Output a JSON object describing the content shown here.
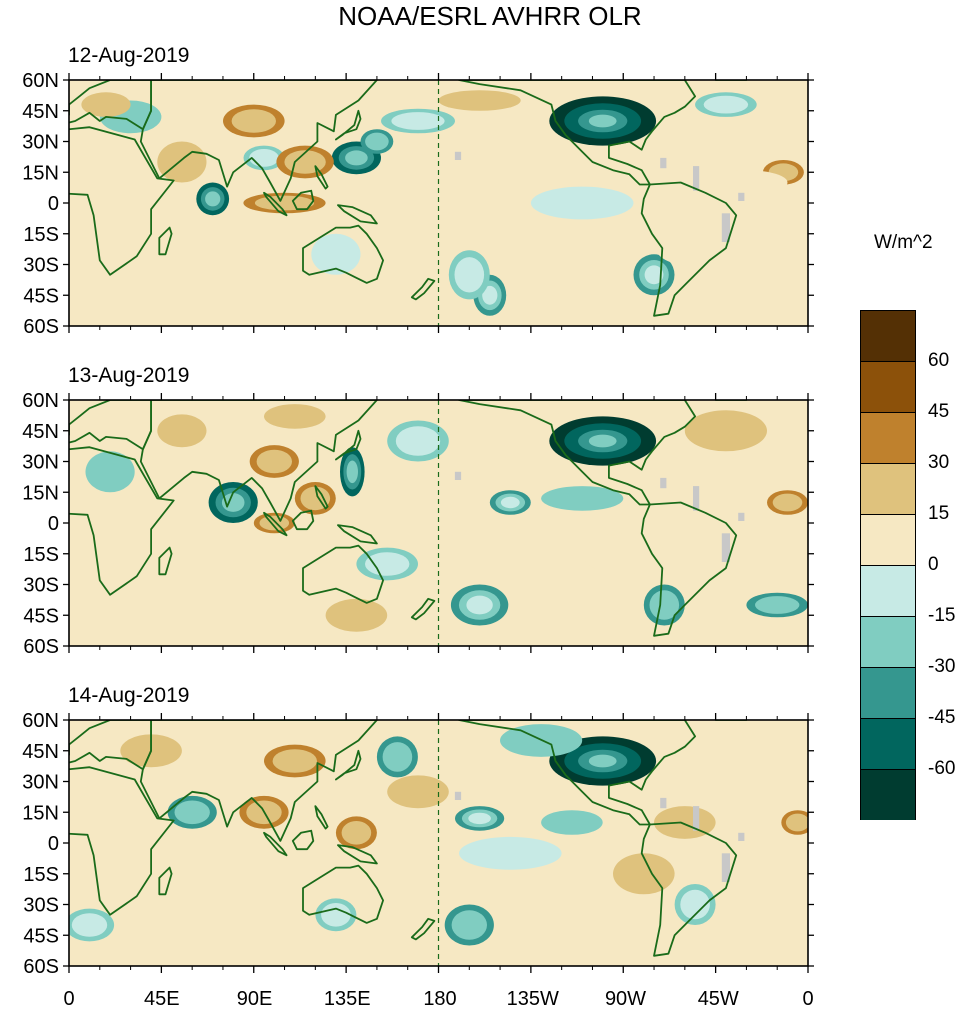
{
  "title": "NOAA/ESRL AVHRR OLR",
  "chart_data": {
    "type": "map",
    "variable": "OLR anomaly",
    "units": "W/m^2",
    "colorbar": {
      "levels": [
        -60,
        -45,
        -30,
        -15,
        0,
        15,
        30,
        45,
        60
      ],
      "label_text": [
        "-60",
        "-45",
        "-30",
        "-15",
        "0",
        "15",
        "30",
        "45",
        "60"
      ],
      "colors": [
        "#003c30",
        "#01665e",
        "#35978f",
        "#80cdc1",
        "#c7eae5",
        "#f6e8c3",
        "#dfc27d",
        "#bf812d",
        "#8c510a",
        "#543005"
      ]
    },
    "x_ticks": [
      "0",
      "45E",
      "90E",
      "135E",
      "180",
      "135W",
      "90W",
      "45W",
      "0"
    ],
    "y_ticks": [
      "60N",
      "45N",
      "30N",
      "15N",
      "0",
      "15S",
      "30S",
      "45S",
      "60S"
    ],
    "lon_range": [
      0,
      360
    ],
    "lat_range": [
      -60,
      60
    ],
    "coastline_color": "#1a6b1a",
    "missing_color": "#c8c8c8",
    "panels": [
      {
        "date": "12-Aug-2019",
        "features": [
          {
            "lon": 260,
            "lat": 40,
            "rx": 26,
            "ry": 12,
            "v": -75
          },
          {
            "lon": 140,
            "lat": 22,
            "rx": 12,
            "ry": 8,
            "v": -50
          },
          {
            "lon": 150,
            "lat": 30,
            "rx": 8,
            "ry": 6,
            "v": -40
          },
          {
            "lon": 95,
            "lat": 22,
            "rx": 10,
            "ry": 6,
            "v": -30
          },
          {
            "lon": 70,
            "lat": 2,
            "rx": 8,
            "ry": 8,
            "v": -50
          },
          {
            "lon": 170,
            "lat": 40,
            "rx": 18,
            "ry": 6,
            "v": -30
          },
          {
            "lon": 205,
            "lat": -45,
            "rx": 8,
            "ry": 10,
            "v": -45
          },
          {
            "lon": 195,
            "lat": -35,
            "rx": 10,
            "ry": 12,
            "v": -30
          },
          {
            "lon": 285,
            "lat": -35,
            "rx": 10,
            "ry": 10,
            "v": -45
          },
          {
            "lon": 320,
            "lat": 48,
            "rx": 15,
            "ry": 6,
            "v": -30
          },
          {
            "lon": 30,
            "lat": 42,
            "rx": 15,
            "ry": 8,
            "v": -20
          },
          {
            "lon": 130,
            "lat": -25,
            "rx": 12,
            "ry": 10,
            "v": -15
          },
          {
            "lon": 250,
            "lat": 0,
            "rx": 25,
            "ry": 8,
            "v": -15
          },
          {
            "lon": 115,
            "lat": 20,
            "rx": 14,
            "ry": 8,
            "v": 40
          },
          {
            "lon": 105,
            "lat": 0,
            "rx": 20,
            "ry": 5,
            "v": 40
          },
          {
            "lon": 90,
            "lat": 40,
            "rx": 15,
            "ry": 8,
            "v": 30
          },
          {
            "lon": 18,
            "lat": 48,
            "rx": 12,
            "ry": 6,
            "v": 25
          },
          {
            "lon": 55,
            "lat": 20,
            "rx": 12,
            "ry": 10,
            "v": 25
          },
          {
            "lon": 348,
            "lat": 15,
            "rx": 10,
            "ry": 6,
            "v": 35
          },
          {
            "lon": 200,
            "lat": 50,
            "rx": 20,
            "ry": 5,
            "v": 15
          },
          {
            "lon": 330,
            "lat": 10,
            "rx": 20,
            "ry": 6,
            "v": 10
          },
          {
            "lon": 300,
            "lat": -20,
            "rx": 15,
            "ry": 10,
            "v": 10
          }
        ]
      },
      {
        "date": "13-Aug-2019",
        "features": [
          {
            "lon": 260,
            "lat": 40,
            "rx": 26,
            "ry": 12,
            "v": -75
          },
          {
            "lon": 80,
            "lat": 10,
            "rx": 12,
            "ry": 10,
            "v": -50
          },
          {
            "lon": 138,
            "lat": 25,
            "rx": 6,
            "ry": 12,
            "v": -55
          },
          {
            "lon": 215,
            "lat": 10,
            "rx": 10,
            "ry": 6,
            "v": -45
          },
          {
            "lon": 200,
            "lat": -40,
            "rx": 14,
            "ry": 10,
            "v": -45
          },
          {
            "lon": 290,
            "lat": -40,
            "rx": 10,
            "ry": 10,
            "v": -40
          },
          {
            "lon": 345,
            "lat": -40,
            "rx": 15,
            "ry": 6,
            "v": -40
          },
          {
            "lon": 155,
            "lat": -20,
            "rx": 15,
            "ry": 8,
            "v": -30
          },
          {
            "lon": 170,
            "lat": 40,
            "rx": 15,
            "ry": 10,
            "v": -30
          },
          {
            "lon": 250,
            "lat": 12,
            "rx": 20,
            "ry": 6,
            "v": -25
          },
          {
            "lon": 20,
            "lat": 25,
            "rx": 12,
            "ry": 10,
            "v": -20
          },
          {
            "lon": 120,
            "lat": 12,
            "rx": 10,
            "ry": 8,
            "v": 40
          },
          {
            "lon": 100,
            "lat": 30,
            "rx": 12,
            "ry": 8,
            "v": 30
          },
          {
            "lon": 100,
            "lat": 0,
            "rx": 10,
            "ry": 5,
            "v": 30
          },
          {
            "lon": 350,
            "lat": 10,
            "rx": 10,
            "ry": 6,
            "v": 35
          },
          {
            "lon": 110,
            "lat": 52,
            "rx": 15,
            "ry": 6,
            "v": 25
          },
          {
            "lon": 55,
            "lat": 45,
            "rx": 12,
            "ry": 8,
            "v": 20
          },
          {
            "lon": 320,
            "lat": 45,
            "rx": 20,
            "ry": 10,
            "v": 15
          },
          {
            "lon": 270,
            "lat": -15,
            "rx": 20,
            "ry": 10,
            "v": 10
          },
          {
            "lon": 140,
            "lat": -45,
            "rx": 15,
            "ry": 8,
            "v": 20
          }
        ]
      },
      {
        "date": "14-Aug-2019",
        "features": [
          {
            "lon": 260,
            "lat": 40,
            "rx": 26,
            "ry": 12,
            "v": -75
          },
          {
            "lon": 160,
            "lat": 42,
            "rx": 10,
            "ry": 10,
            "v": -40
          },
          {
            "lon": 60,
            "lat": 15,
            "rx": 12,
            "ry": 8,
            "v": -40
          },
          {
            "lon": 200,
            "lat": 12,
            "rx": 12,
            "ry": 6,
            "v": -45
          },
          {
            "lon": 195,
            "lat": -40,
            "rx": 12,
            "ry": 10,
            "v": -40
          },
          {
            "lon": 305,
            "lat": -30,
            "rx": 10,
            "ry": 10,
            "v": -30
          },
          {
            "lon": 10,
            "lat": -40,
            "rx": 12,
            "ry": 8,
            "v": -30
          },
          {
            "lon": 230,
            "lat": 50,
            "rx": 20,
            "ry": 8,
            "v": -20
          },
          {
            "lon": 130,
            "lat": -35,
            "rx": 10,
            "ry": 8,
            "v": -30
          },
          {
            "lon": 245,
            "lat": 10,
            "rx": 15,
            "ry": 6,
            "v": -20
          },
          {
            "lon": 215,
            "lat": -5,
            "rx": 25,
            "ry": 8,
            "v": -15
          },
          {
            "lon": 110,
            "lat": 40,
            "rx": 15,
            "ry": 8,
            "v": 40
          },
          {
            "lon": 95,
            "lat": 15,
            "rx": 12,
            "ry": 8,
            "v": 35
          },
          {
            "lon": 140,
            "lat": 5,
            "rx": 10,
            "ry": 8,
            "v": 30
          },
          {
            "lon": 355,
            "lat": 10,
            "rx": 8,
            "ry": 6,
            "v": 35
          },
          {
            "lon": 170,
            "lat": 25,
            "rx": 15,
            "ry": 8,
            "v": 20
          },
          {
            "lon": 40,
            "lat": 45,
            "rx": 15,
            "ry": 8,
            "v": 20
          },
          {
            "lon": 300,
            "lat": 10,
            "rx": 15,
            "ry": 8,
            "v": 15
          },
          {
            "lon": 280,
            "lat": -15,
            "rx": 15,
            "ry": 10,
            "v": 15
          }
        ]
      }
    ]
  }
}
